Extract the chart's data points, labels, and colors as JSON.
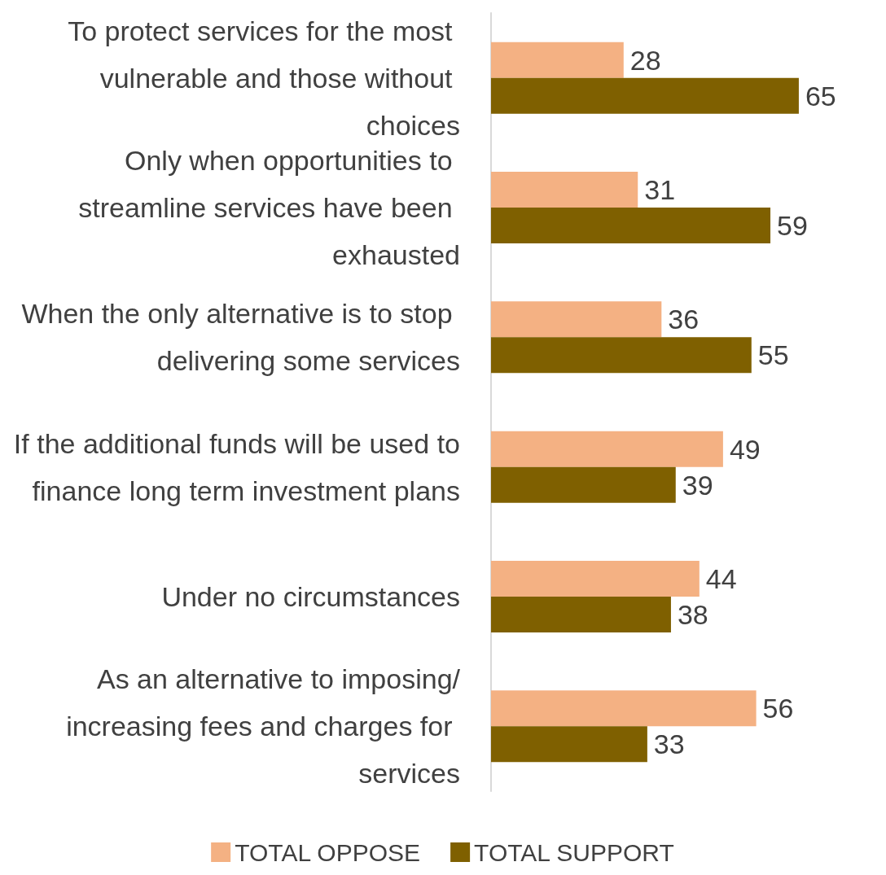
{
  "chart_data": {
    "type": "bar",
    "orientation": "horizontal",
    "categories": [
      "To protect services for the most vulnerable and those without choices",
      "Only when opportunities to streamline services have been exhausted",
      "When the only alternative is to stop delivering some services",
      "If the additional funds will be used to finance long term investment plans",
      "Under no circumstances",
      "As an alternative to imposing/increasing fees and charges for services"
    ],
    "series": [
      {
        "name": "TOTAL OPPOSE",
        "color": "#f4b183",
        "values": [
          28,
          31,
          36,
          49,
          44,
          56
        ]
      },
      {
        "name": "TOTAL SUPPORT",
        "color": "#7f6000",
        "values": [
          65,
          59,
          55,
          39,
          38,
          33
        ]
      }
    ],
    "data_labels": true,
    "legend": "bottom",
    "grid": false,
    "tick_labels": "y"
  }
}
